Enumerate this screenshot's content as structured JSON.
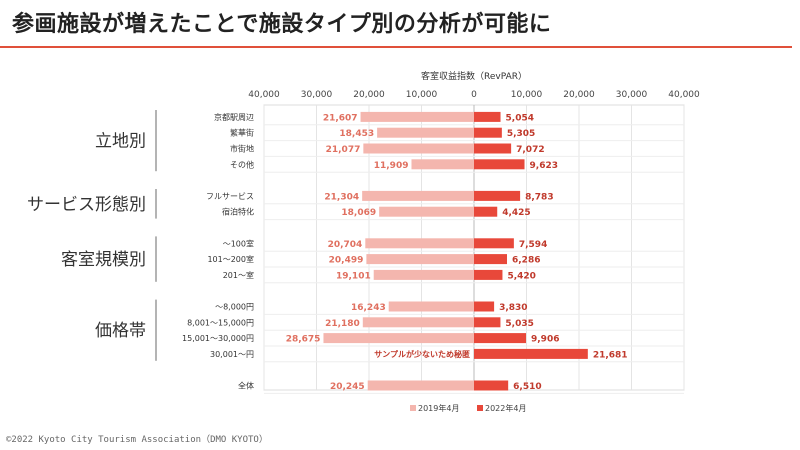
{
  "page": {
    "title": "参画施設が増えたことで施設タイプ別の分析が可能に",
    "footer": "©2022 Kyoto City Tourism Association（DMO KYOTO）",
    "colors": {
      "accent": "#e0503a",
      "series2019": "#f4b6ae",
      "series2022": "#e8483a"
    }
  },
  "chart_data": {
    "type": "bar",
    "orientation": "horizontal-diverging",
    "xlabel": "客室収益指数（RevPAR）",
    "xlim": [
      -40000,
      40000
    ],
    "x_ticks": [
      "40,000",
      "30,000",
      "20,000",
      "10,000",
      "0",
      "10,000",
      "20,000",
      "30,000",
      "40,000"
    ],
    "groups": [
      {
        "label": "立地別",
        "categories": [
          "京都駅周辺",
          "繁華街",
          "市街地",
          "その他"
        ]
      },
      {
        "label": "サービス形態別",
        "categories": [
          "フルサービス",
          "宿泊特化"
        ]
      },
      {
        "label": "客室規模別",
        "categories": [
          "～100室",
          "101～200室",
          "201～室"
        ]
      },
      {
        "label": "価格帯",
        "categories": [
          "～8,000円",
          "8,001～15,000円",
          "15,001～30,000円",
          "30,001～円"
        ]
      },
      {
        "label": "",
        "categories": [
          "全体"
        ]
      }
    ],
    "series": [
      {
        "name": "2019年4月",
        "side": "left",
        "values": [
          21607,
          18453,
          21077,
          11909,
          21304,
          18069,
          20704,
          20499,
          19101,
          16243,
          21180,
          28675,
          null,
          20245
        ],
        "labels": [
          "21,607",
          "18,453",
          "21,077",
          "11,909",
          "21,304",
          "18,069",
          "20,704",
          "20,499",
          "19,101",
          "16,243",
          "21,180",
          "28,675",
          "",
          "20,245"
        ]
      },
      {
        "name": "2022年4月",
        "side": "right",
        "values": [
          5054,
          5305,
          7072,
          9623,
          8783,
          4425,
          7594,
          6286,
          5420,
          3830,
          5035,
          9906,
          21681,
          6510
        ],
        "labels": [
          "5,054",
          "5,305",
          "7,072",
          "9,623",
          "8,783",
          "4,425",
          "7,594",
          "6,286",
          "5,420",
          "3,830",
          "5,035",
          "9,906",
          "21,681",
          "6,510"
        ]
      }
    ],
    "annotations": [
      {
        "category": "30,001～円",
        "text": "サンプルが少ないため秘匿"
      }
    ],
    "grid": true,
    "legend": "bottom"
  }
}
